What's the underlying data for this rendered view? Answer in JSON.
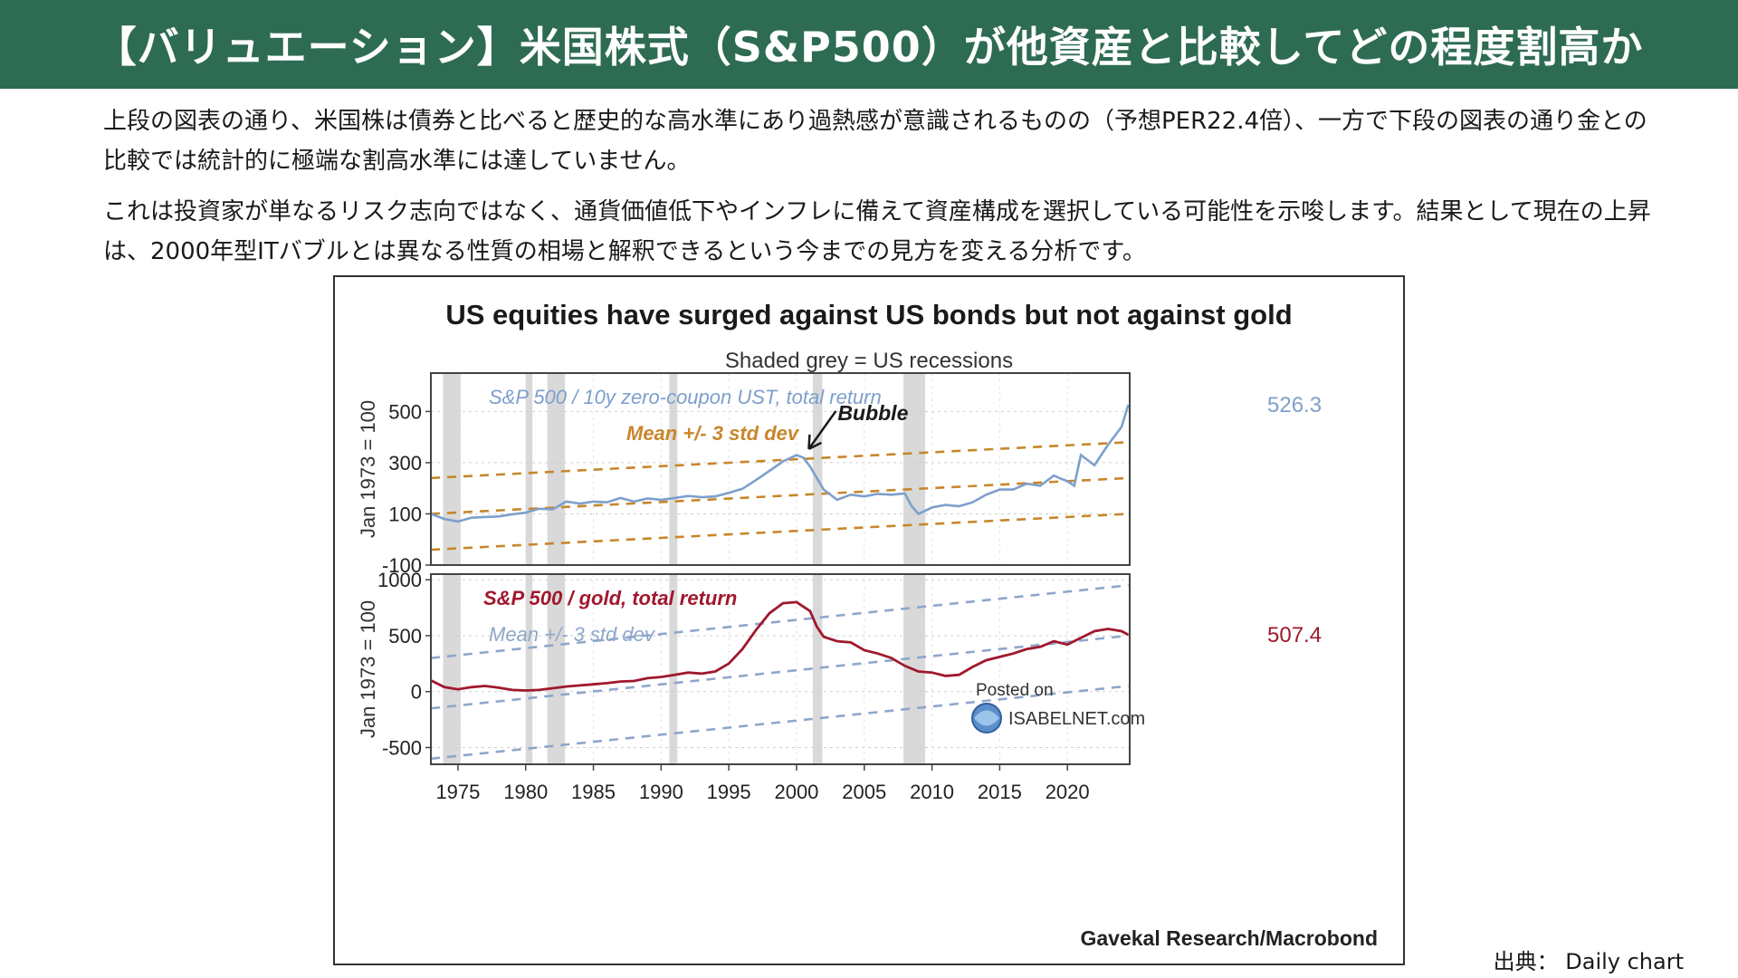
{
  "page": {
    "title": "【バリュエーション】米国株式（S&P500）が他資産と比較してどの程度割高か",
    "paragraphs": [
      "上段の図表の通り、米国株は債券と比べると歴史的な高水準にあり過熱感が意識されるものの（予想PER22.4倍）、一方で下段の図表の通り金との比較では統計的に極端な割高水準には達していません。",
      "これは投資家が単なるリスク志向ではなく、通貨価値低下やインフレに備えて資産構成を選択している可能性を示唆します。結果として現在の上昇は、2000年型ITバブルとは異なる性質の相場と解釈できるという今までの見方を変える分析です。"
    ],
    "source": "出典： Daily chart"
  },
  "colors": {
    "header_bg": "#2e6b53",
    "blue_series": "#7d9fcc",
    "red_series": "#a0182d",
    "orange_band": "#c8862b",
    "blue_band": "#8ea7c9",
    "recession": "#d9d9d9"
  },
  "chart_data": [
    {
      "type": "line",
      "title": "US equities have surged against US bonds but not against gold",
      "subtitle": "Shaded grey = US recessions",
      "credit": "Gavekal Research/Macrobond",
      "watermark_line1": "Posted on",
      "watermark_line2": "ISABELNET.com",
      "recessions": [
        [
          1973.9,
          1975.2
        ],
        [
          1980.0,
          1980.5
        ],
        [
          1981.6,
          1982.9
        ],
        [
          1990.6,
          1991.2
        ],
        [
          2001.2,
          2001.9
        ],
        [
          2007.9,
          2009.5
        ]
      ],
      "x_ticks": [
        1975,
        1980,
        1985,
        1990,
        1995,
        2000,
        2005,
        2010,
        2015,
        2020
      ],
      "xlim": [
        1973,
        2024.6
      ],
      "panels": [
        {
          "series_name": "S&P 500 / 10y zero-coupon UST, total return",
          "band_label": "Mean +/- 3 std dev",
          "annotation": "Bubble",
          "annotation_point": [
            2000.5,
            325
          ],
          "ylabel": "Jan 1973 = 100",
          "ylim": [
            -100,
            650
          ],
          "y_ticks": [
            500,
            300,
            100,
            -100
          ],
          "last_value_label": "526.3",
          "mean_line": [
            [
              1973,
              100
            ],
            [
              2024.5,
              240
            ]
          ],
          "band_offset": 140,
          "series": {
            "x": [
              1973,
              1974,
              1975,
              1976,
              1977,
              1978,
              1979,
              1980,
              1981,
              1982,
              1983,
              1984,
              1985,
              1986,
              1987,
              1988,
              1989,
              1990,
              1991,
              1992,
              1993,
              1994,
              1995,
              1996,
              1997,
              1998,
              1999,
              2000,
              2000.5,
              2001,
              2002,
              2003,
              2004,
              2005,
              2006,
              2007,
              2008,
              2008.5,
              2009,
              2010,
              2011,
              2012,
              2013,
              2014,
              2015,
              2016,
              2017,
              2018,
              2019,
              2019.5,
              2020,
              2020.5,
              2021,
              2022,
              2023,
              2024,
              2024.5
            ],
            "values": [
              100,
              80,
              70,
              85,
              88,
              90,
              98,
              105,
              120,
              118,
              148,
              140,
              148,
              145,
              162,
              148,
              160,
              155,
              162,
              170,
              165,
              168,
              182,
              198,
              232,
              268,
              305,
              330,
              320,
              285,
              195,
              155,
              175,
              168,
              178,
              175,
              180,
              130,
              100,
              125,
              135,
              130,
              145,
              175,
              195,
              195,
              218,
              210,
              250,
              238,
              228,
              210,
              330,
              290,
              370,
              440,
              526.3
            ]
          }
        },
        {
          "series_name": "S&P 500 / gold, total return",
          "band_label": "Mean +/- 3 std dev",
          "ylabel": "Jan 1973 = 100",
          "ylim": [
            -650,
            1050
          ],
          "y_ticks": [
            1000,
            500,
            0,
            -500
          ],
          "last_value_label": "507.4",
          "mean_line": [
            [
              1973,
              -150
            ],
            [
              2024.5,
              500
            ]
          ],
          "band_offset": 450,
          "series": {
            "x": [
              1973,
              1974,
              1975,
              1976,
              1977,
              1978,
              1979,
              1980,
              1981,
              1982,
              1983,
              1984,
              1985,
              1986,
              1987,
              1988,
              1989,
              1990,
              1991,
              1992,
              1993,
              1994,
              1995,
              1996,
              1997,
              1998,
              1999,
              2000,
              2001,
              2001.5,
              2002,
              2003,
              2004,
              2005,
              2006,
              2007,
              2008,
              2009,
              2010,
              2011,
              2012,
              2013,
              2014,
              2015,
              2016,
              2017,
              2018,
              2019,
              2020,
              2021,
              2022,
              2023,
              2024,
              2024.5
            ],
            "values": [
              100,
              40,
              20,
              40,
              50,
              35,
              15,
              10,
              15,
              30,
              45,
              55,
              65,
              75,
              90,
              95,
              120,
              130,
              150,
              170,
              160,
              180,
              250,
              380,
              550,
              700,
              790,
              800,
              720,
              580,
              490,
              450,
              440,
              370,
              340,
              300,
              230,
              180,
              170,
              140,
              150,
              220,
              280,
              310,
              340,
              380,
              400,
              450,
              420,
              480,
              540,
              560,
              540,
              507.4
            ]
          }
        }
      ]
    }
  ]
}
